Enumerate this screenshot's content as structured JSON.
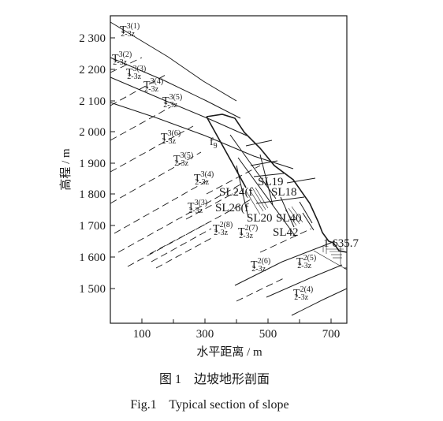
{
  "axes": {
    "y_label": "高程 / m",
    "x_label": "水平距离 / m",
    "y_ticks": [
      "2 300",
      "2 200",
      "2 100",
      "2 000",
      "1 900",
      "1 800",
      "1 700",
      "1 600",
      "1 500"
    ],
    "x_ticks": [
      "100",
      "300",
      "500",
      "700"
    ]
  },
  "layers": [
    {
      "base": "T",
      "sup": "3(1)",
      "sub": "2-3z"
    },
    {
      "base": "T",
      "sup": "3(2)",
      "sub": "2-3z"
    },
    {
      "base": "T",
      "sup": "3(3)",
      "sub": "2-3z"
    },
    {
      "base": "T",
      "sup": "3(4)",
      "sub": "2-3z"
    },
    {
      "base": "T",
      "sup": "3(5)",
      "sub": "2-3z"
    },
    {
      "base": "T",
      "sup": "3(6)",
      "sub": "2-3z"
    },
    {
      "base": "T",
      "sup": "3(5)",
      "sub": "2-3z"
    },
    {
      "base": "T",
      "sup": "3(4)",
      "sub": "2-3z"
    },
    {
      "base": "T",
      "sup": "3(3)",
      "sub": "2-3z"
    },
    {
      "base": "T",
      "sup": "2(8)",
      "sub": "2-3z"
    },
    {
      "base": "T",
      "sup": "2(7)",
      "sub": "2-3z"
    },
    {
      "base": "T",
      "sup": "2(6)",
      "sub": "2-3z"
    },
    {
      "base": "T",
      "sup": "2(5)",
      "sub": "2-3z"
    },
    {
      "base": "T",
      "sup": "2(4)",
      "sub": "2-3z"
    }
  ],
  "fault": {
    "base": "f",
    "sub": "9"
  },
  "structures": [
    "SL19",
    "SL24(f",
    "SL18",
    "SL26(f",
    "SL20",
    "SL40",
    "SL42"
  ],
  "elevation_mark": "1 635.7",
  "caption": {
    "cn": "图 1    边坡地形剖面",
    "en": "Fig.1    Typical section of slope"
  }
}
